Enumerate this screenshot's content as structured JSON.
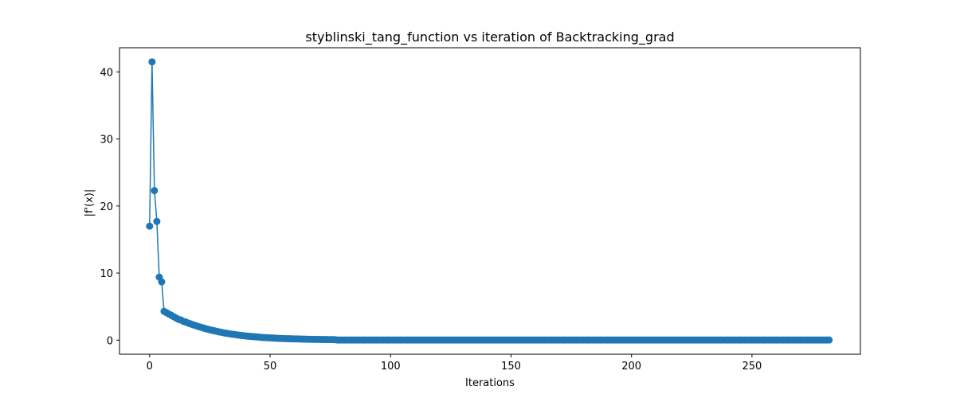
{
  "chart_data": {
    "type": "line",
    "title": "styblinski_tang_function vs iteration of Backtracking_grad",
    "xlabel": "Iterations",
    "ylabel": "|f'(x)|",
    "xlim": [
      -12.5,
      295
    ],
    "ylim": [
      -2.1,
      43.6
    ],
    "xticks": [
      0,
      50,
      100,
      150,
      200,
      250
    ],
    "yticks": [
      0,
      10,
      20,
      30,
      40
    ],
    "grid": false,
    "color": "#1f77b4",
    "marker": "circle",
    "series": [
      {
        "x_start": 0,
        "x_end": 282,
        "values": [
          17.0,
          41.5,
          22.3,
          17.7,
          9.4,
          8.7,
          4.3,
          4.1,
          3.9,
          3.7,
          3.5,
          3.3,
          3.1,
          3.0,
          2.8,
          2.7,
          2.55,
          2.42,
          2.3,
          2.18,
          2.06,
          1.95,
          1.84,
          1.74,
          1.64,
          1.55,
          1.46,
          1.38,
          1.3,
          1.22,
          1.15,
          1.08,
          1.02,
          0.96,
          0.9,
          0.85,
          0.8,
          0.75,
          0.7,
          0.66,
          0.62,
          0.58,
          0.55,
          0.52,
          0.49,
          0.46,
          0.43,
          0.4,
          0.38,
          0.36,
          0.34,
          0.32,
          0.3,
          0.28,
          0.26,
          0.25,
          0.23,
          0.22,
          0.21,
          0.2,
          0.19,
          0.18,
          0.17,
          0.16,
          0.15,
          0.14,
          0.13,
          0.12,
          0.115,
          0.11,
          0.105,
          0.1,
          0.095,
          0.09,
          0.085,
          0.08,
          0.075,
          0.07
        ],
        "tail_value": 0.02
      }
    ]
  }
}
